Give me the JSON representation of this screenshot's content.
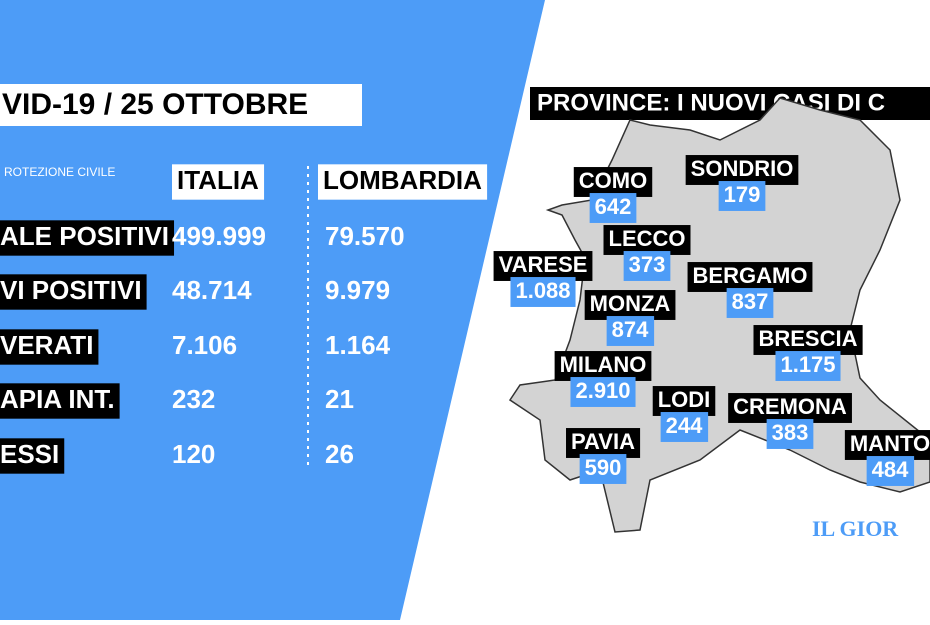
{
  "header": {
    "title": "VID-19 / 25 OTTOBRE"
  },
  "table": {
    "source": "ROTEZIONE CIVILE",
    "columns": [
      "ITALIA",
      "LOMBARDIA"
    ],
    "rows": [
      [
        "ALE POSITIVI",
        "499.999",
        "79.570"
      ],
      [
        "VI POSITIVI",
        "48.714",
        "9.979"
      ],
      [
        "VERATI",
        "7.106",
        "1.164"
      ],
      [
        "APIA INT.",
        "232",
        "21"
      ],
      [
        "ESSI",
        "120",
        "26"
      ]
    ]
  },
  "map": {
    "title": "PROVINCE: I NUOVI CASI DI C",
    "provinces": [
      {
        "name": "COMO",
        "value": "642"
      },
      {
        "name": "SONDRIO",
        "value": "179"
      },
      {
        "name": "LECCO",
        "value": "373"
      },
      {
        "name": "VARESE",
        "value": "1.088"
      },
      {
        "name": "BERGAMO",
        "value": "837"
      },
      {
        "name": "MONZA",
        "value": "874"
      },
      {
        "name": "BRESCIA",
        "value": "1.175"
      },
      {
        "name": "MILANO",
        "value": "2.910"
      },
      {
        "name": "LODI",
        "value": "244"
      },
      {
        "name": "CREMONA",
        "value": "383"
      },
      {
        "name": "PAVIA",
        "value": "590"
      },
      {
        "name": "MANTO",
        "value": "484"
      }
    ]
  },
  "logo": "IL GIOR"
}
